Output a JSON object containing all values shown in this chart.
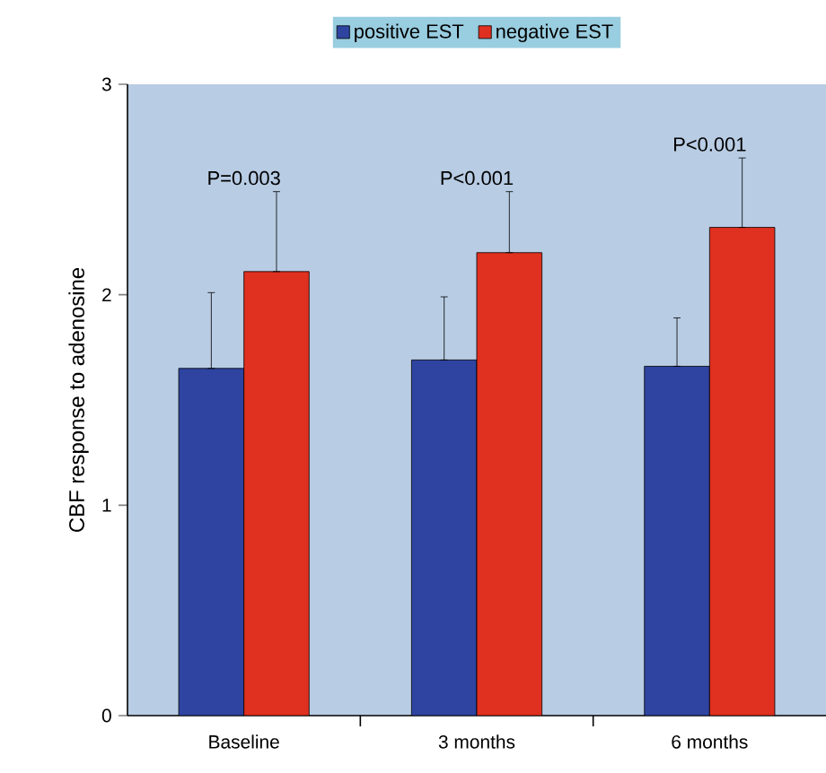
{
  "chart_data": {
    "type": "bar",
    "ylabel": "CBF response to adenosine",
    "categories": [
      "Baseline",
      "3 months",
      "6 months"
    ],
    "series": [
      {
        "name": "positive EST",
        "color": "#2e44a0",
        "values": [
          1.65,
          1.69,
          1.66
        ],
        "errors": [
          [
            1.65,
            2.01
          ],
          [
            1.69,
            1.99
          ],
          [
            1.66,
            1.89
          ]
        ]
      },
      {
        "name": "negative EST",
        "color": "#e03020",
        "values": [
          2.11,
          2.2,
          2.32
        ],
        "errors": [
          [
            2.11,
            2.49
          ],
          [
            2.2,
            2.49
          ],
          [
            2.32,
            2.65
          ]
        ]
      }
    ],
    "ylim": [
      0,
      3
    ],
    "yticks": [
      0,
      1,
      2,
      3
    ],
    "legend": "top",
    "grid": false,
    "annotations": [
      "P=0.003",
      "P<0.001",
      "P<0.001"
    ]
  }
}
